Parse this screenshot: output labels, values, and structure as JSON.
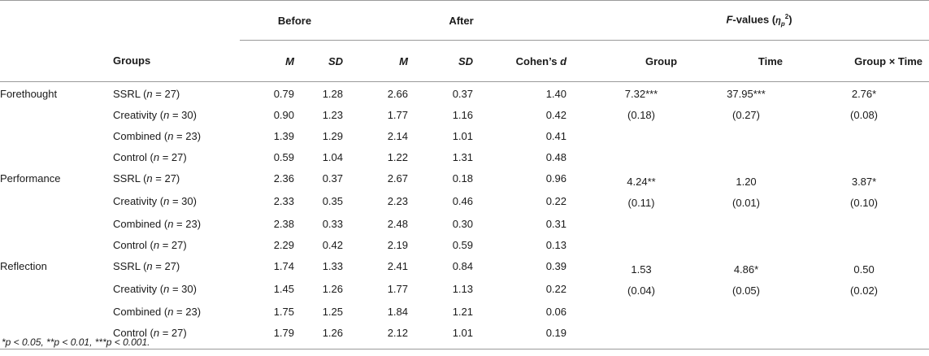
{
  "header": {
    "groups_label": "Groups",
    "before_label": "Before",
    "after_label": "After",
    "fvalues_label_main": "F-values (",
    "fvalues_eta": "η",
    "fvalues_sub": "p",
    "fvalues_sup": "2",
    "fvalues_close": ")",
    "m_label": "M",
    "sd_label": "SD",
    "cohens_label": "Cohen's d",
    "group_label": "Group",
    "time_label": "Time",
    "group_time_label": "Group × Time"
  },
  "sections": [
    {
      "name": "Forethought",
      "f_group": "7.32***",
      "f_group_eta": "(0.18)",
      "f_time": "37.95***",
      "f_time_eta": "(0.27)",
      "f_gt": "2.76*",
      "f_gt_eta": "(0.08)",
      "rows": [
        {
          "group": "SSRL (n = 27)",
          "bm": "0.79",
          "bsd": "1.28",
          "am": "2.66",
          "asd": "0.37",
          "d": "1.40"
        },
        {
          "group": "Creativity (n = 30)",
          "bm": "0.90",
          "bsd": "1.23",
          "am": "1.77",
          "asd": "1.16",
          "d": "0.42"
        },
        {
          "group": "Combined (n = 23)",
          "bm": "1.39",
          "bsd": "1.29",
          "am": "2.14",
          "asd": "1.01",
          "d": "0.41"
        },
        {
          "group": "Control (n = 27)",
          "bm": "0.59",
          "bsd": "1.04",
          "am": "1.22",
          "asd": "1.31",
          "d": "0.48"
        }
      ]
    },
    {
      "name": "Performance",
      "f_group": "4.24**",
      "f_group_eta": "(0.11)",
      "f_time": "1.20",
      "f_time_eta": "(0.01)",
      "f_gt": "3.87*",
      "f_gt_eta": "(0.10)",
      "rows": [
        {
          "group": "SSRL (n = 27)",
          "bm": "2.36",
          "bsd": "0.37",
          "am": "2.67",
          "asd": "0.18",
          "d": "0.96"
        },
        {
          "group": "Creativity (n = 30)",
          "bm": "2.33",
          "bsd": "0.35",
          "am": "2.23",
          "asd": "0.46",
          "d": "0.22"
        },
        {
          "group": "Combined (n = 23)",
          "bm": "2.38",
          "bsd": "0.33",
          "am": "2.48",
          "asd": "0.30",
          "d": "0.31"
        },
        {
          "group": "Control (n = 27)",
          "bm": "2.29",
          "bsd": "0.42",
          "am": "2.19",
          "asd": "0.59",
          "d": "0.13"
        }
      ]
    },
    {
      "name": "Reflection",
      "f_group": "1.53",
      "f_group_eta": "(0.04)",
      "f_time": "4.86*",
      "f_time_eta": "(0.05)",
      "f_gt": "0.50",
      "f_gt_eta": "(0.02)",
      "rows": [
        {
          "group": "SSRL (n = 27)",
          "bm": "1.74",
          "bsd": "1.33",
          "am": "2.41",
          "asd": "0.84",
          "d": "0.39"
        },
        {
          "group": "Creativity (n = 30)",
          "bm": "1.45",
          "bsd": "1.26",
          "am": "1.77",
          "asd": "1.13",
          "d": "0.22"
        },
        {
          "group": "Combined (n = 23)",
          "bm": "1.75",
          "bsd": "1.25",
          "am": "1.84",
          "asd": "1.21",
          "d": "0.06"
        },
        {
          "group": "Control (n = 27)",
          "bm": "1.79",
          "bsd": "1.26",
          "am": "2.12",
          "asd": "1.01",
          "d": "0.19"
        }
      ]
    }
  ],
  "footnote": "*p < 0.05, **p < 0.01, ***p < 0.001."
}
